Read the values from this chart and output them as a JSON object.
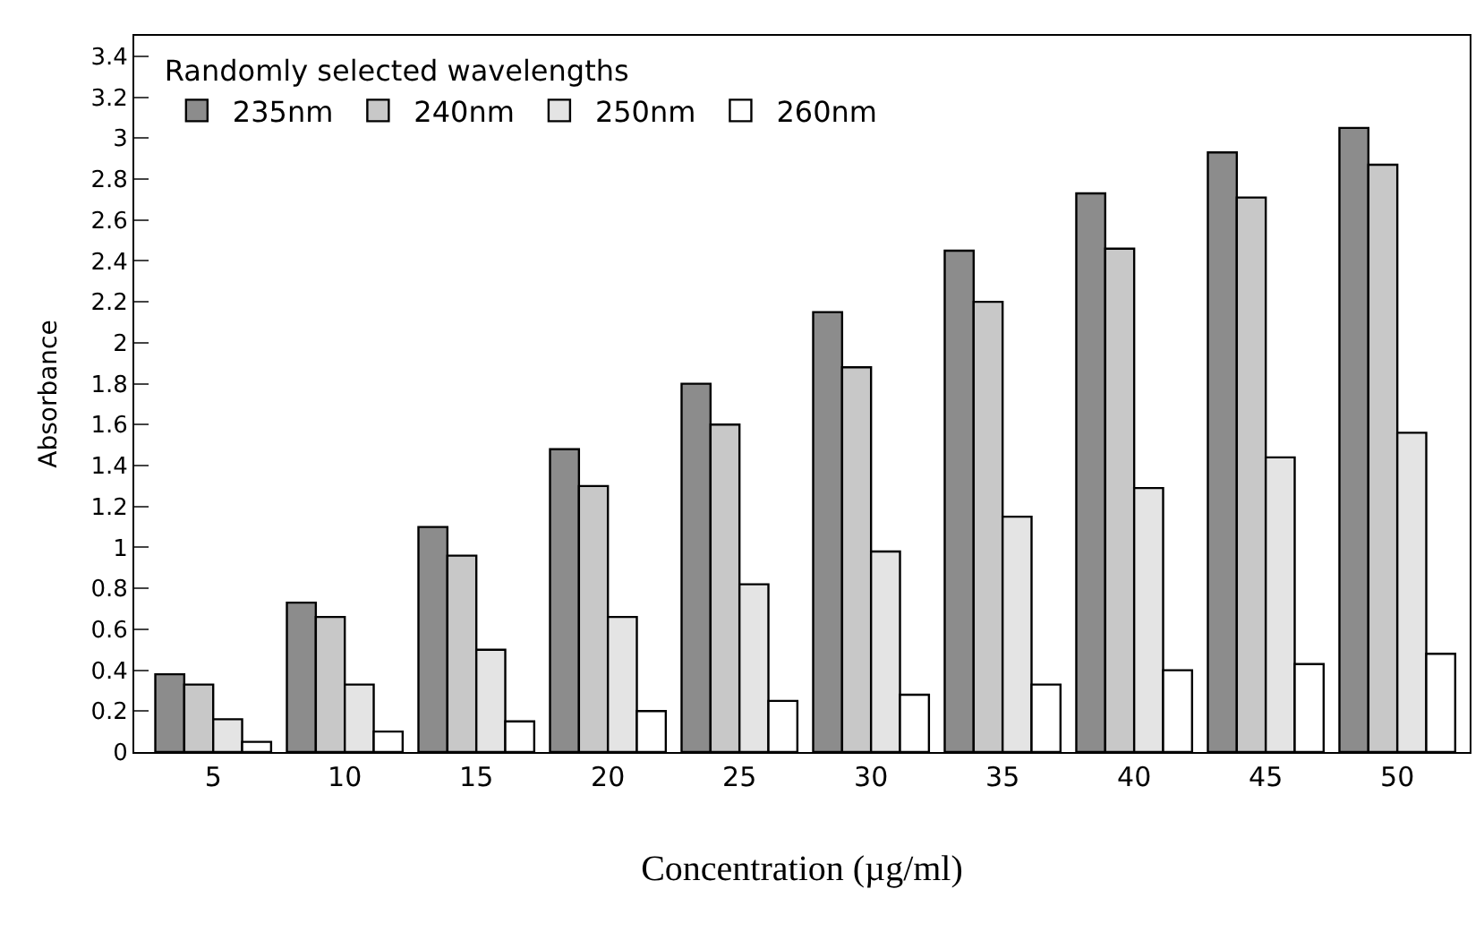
{
  "chart_data": {
    "type": "bar",
    "xlabel": "Concentration (µg/ml)",
    "ylabel": "Absorbance",
    "legend_title": "Randomly selected wavelengths",
    "legend": "top left",
    "categories": [
      "5",
      "10",
      "15",
      "20",
      "25",
      "30",
      "35",
      "40",
      "45",
      "50"
    ],
    "ylim": [
      0,
      3.5
    ],
    "yticks": [
      0,
      0.2,
      0.4,
      0.6,
      0.8,
      1,
      1.2,
      1.4,
      1.6,
      1.8,
      2,
      2.2,
      2.4,
      2.6,
      2.8,
      3,
      3.2,
      3.4
    ],
    "series": [
      {
        "name": "235nm",
        "color": "#8c8c8c",
        "values": [
          0.38,
          0.73,
          1.1,
          1.48,
          1.8,
          2.15,
          2.45,
          2.73,
          2.93,
          3.05
        ]
      },
      {
        "name": "240nm",
        "color": "#c8c8c8",
        "values": [
          0.33,
          0.66,
          0.96,
          1.3,
          1.6,
          1.88,
          2.2,
          2.46,
          2.71,
          2.87
        ]
      },
      {
        "name": "250nm",
        "color": "#e4e4e4",
        "values": [
          0.16,
          0.33,
          0.5,
          0.66,
          0.82,
          0.98,
          1.15,
          1.29,
          1.44,
          1.56
        ]
      },
      {
        "name": "260nm",
        "color": "#ffffff",
        "values": [
          0.05,
          0.1,
          0.15,
          0.2,
          0.25,
          0.28,
          0.33,
          0.4,
          0.43,
          0.48
        ]
      }
    ]
  }
}
